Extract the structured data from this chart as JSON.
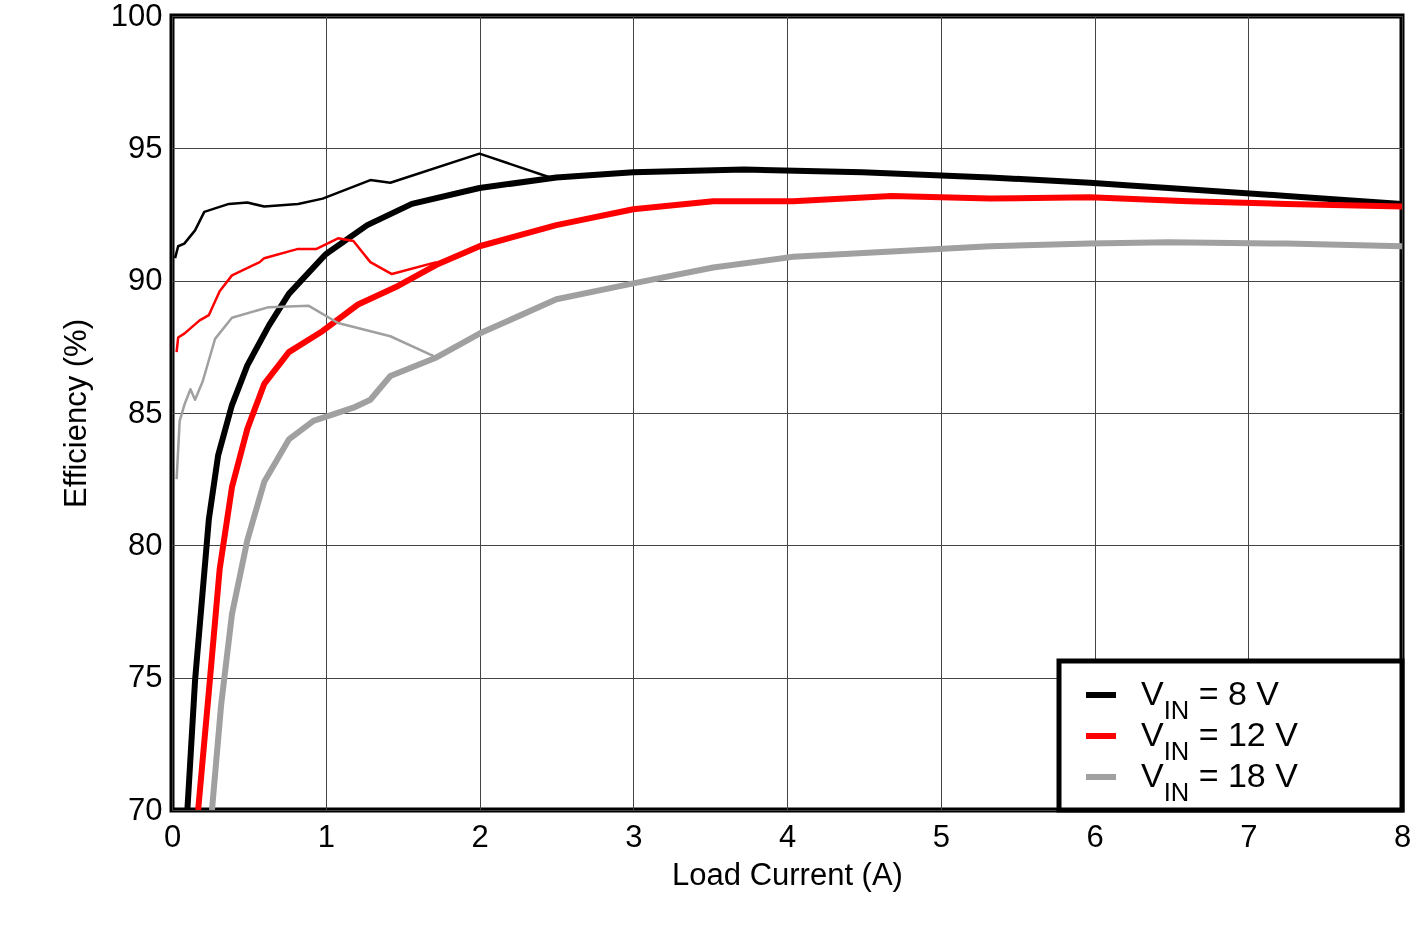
{
  "chart_data": {
    "type": "line",
    "xlabel": "Load Current (A)",
    "ylabel": "Efficiency (%)",
    "xlim": [
      0,
      8
    ],
    "xticks": [
      0,
      1,
      2,
      3,
      4,
      5,
      6,
      7,
      8
    ],
    "ylim": [
      70,
      100
    ],
    "yticks": [
      70,
      75,
      80,
      85,
      90,
      95,
      100
    ],
    "grid": true,
    "legend": "bottom right",
    "series": [
      {
        "name": "V$_{IN}$ = 8 V",
        "color": "#000000",
        "x": [
          0.1,
          0.15,
          0.24,
          0.3,
          0.39,
          0.49,
          0.63,
          0.76,
          1.0,
          1.27,
          1.56,
          2.0,
          2.5,
          3.0,
          3.72,
          4.49,
          5.32,
          5.97,
          6.23,
          6.48,
          7.25,
          8.0
        ],
        "values": [
          70,
          74.9,
          81.0,
          83.4,
          85.3,
          86.8,
          88.3,
          89.5,
          91.0,
          92.1,
          92.9,
          93.5,
          93.9,
          94.1,
          94.2,
          94.1,
          93.9,
          93.7,
          93.6,
          93.5,
          93.2,
          92.9
        ]
      },
      {
        "name": "V$_{IN}$ = 12 V",
        "color": "#ff0000",
        "x": [
          0.17,
          0.24,
          0.31,
          0.39,
          0.49,
          0.6,
          0.76,
          0.98,
          1.21,
          1.47,
          1.72,
          2.0,
          2.5,
          3.0,
          3.52,
          4.04,
          4.68,
          5.32,
          5.97,
          6.61,
          7.25,
          8.0
        ],
        "values": [
          70,
          74.5,
          79.1,
          82.2,
          84.4,
          86.1,
          87.3,
          88.1,
          89.1,
          89.8,
          90.6,
          91.3,
          92.1,
          92.7,
          93.0,
          93.0,
          93.2,
          93.1,
          93.15,
          93.0,
          92.9,
          92.8
        ]
      },
      {
        "name": "V$_{IN}$ = 18 V",
        "color": "#a0a0a0",
        "x": [
          0.26,
          0.32,
          0.39,
          0.49,
          0.6,
          0.76,
          0.92,
          1.18,
          1.29,
          1.42,
          1.72,
          2.0,
          2.5,
          3.0,
          3.52,
          4.04,
          4.68,
          5.32,
          5.97,
          6.48,
          7.25,
          8.0
        ],
        "values": [
          70,
          74.0,
          77.4,
          80.2,
          82.4,
          84.0,
          84.7,
          85.2,
          85.5,
          86.4,
          87.1,
          88.0,
          89.3,
          89.9,
          90.5,
          90.9,
          91.1,
          91.3,
          91.4,
          91.45,
          91.4,
          91.3
        ]
      },
      {
        "color": "#000000",
        "x": [
          0.02,
          0.04,
          0.08,
          0.15,
          0.21,
          0.37,
          0.49,
          0.6,
          0.82,
          0.98,
          1.29,
          1.42,
          2.0,
          2.46
        ],
        "values": [
          90.85,
          91.3,
          91.4,
          91.9,
          92.6,
          92.9,
          92.95,
          92.8,
          92.9,
          93.1,
          93.8,
          93.7,
          94.8,
          93.9
        ]
      },
      {
        "color": "#ff0000",
        "x": [
          0.03,
          0.04,
          0.08,
          0.18,
          0.24,
          0.31,
          0.39,
          0.57,
          0.6,
          0.82,
          0.94,
          1.08,
          1.18,
          1.29,
          1.43,
          1.72
        ],
        "values": [
          87.3,
          87.85,
          88.0,
          88.5,
          88.7,
          89.6,
          90.2,
          90.7,
          90.85,
          91.2,
          91.2,
          91.6,
          91.5,
          90.7,
          90.25,
          90.7
        ]
      },
      {
        "color": "#a0a0a0",
        "x": [
          0.03,
          0.05,
          0.08,
          0.12,
          0.15,
          0.2,
          0.28,
          0.39,
          0.63,
          0.89,
          1.08,
          1.42,
          1.72
        ],
        "values": [
          82.5,
          84.7,
          85.3,
          85.9,
          85.5,
          86.2,
          87.8,
          88.6,
          89.0,
          89.05,
          88.4,
          87.9,
          87.1
        ]
      }
    ]
  }
}
